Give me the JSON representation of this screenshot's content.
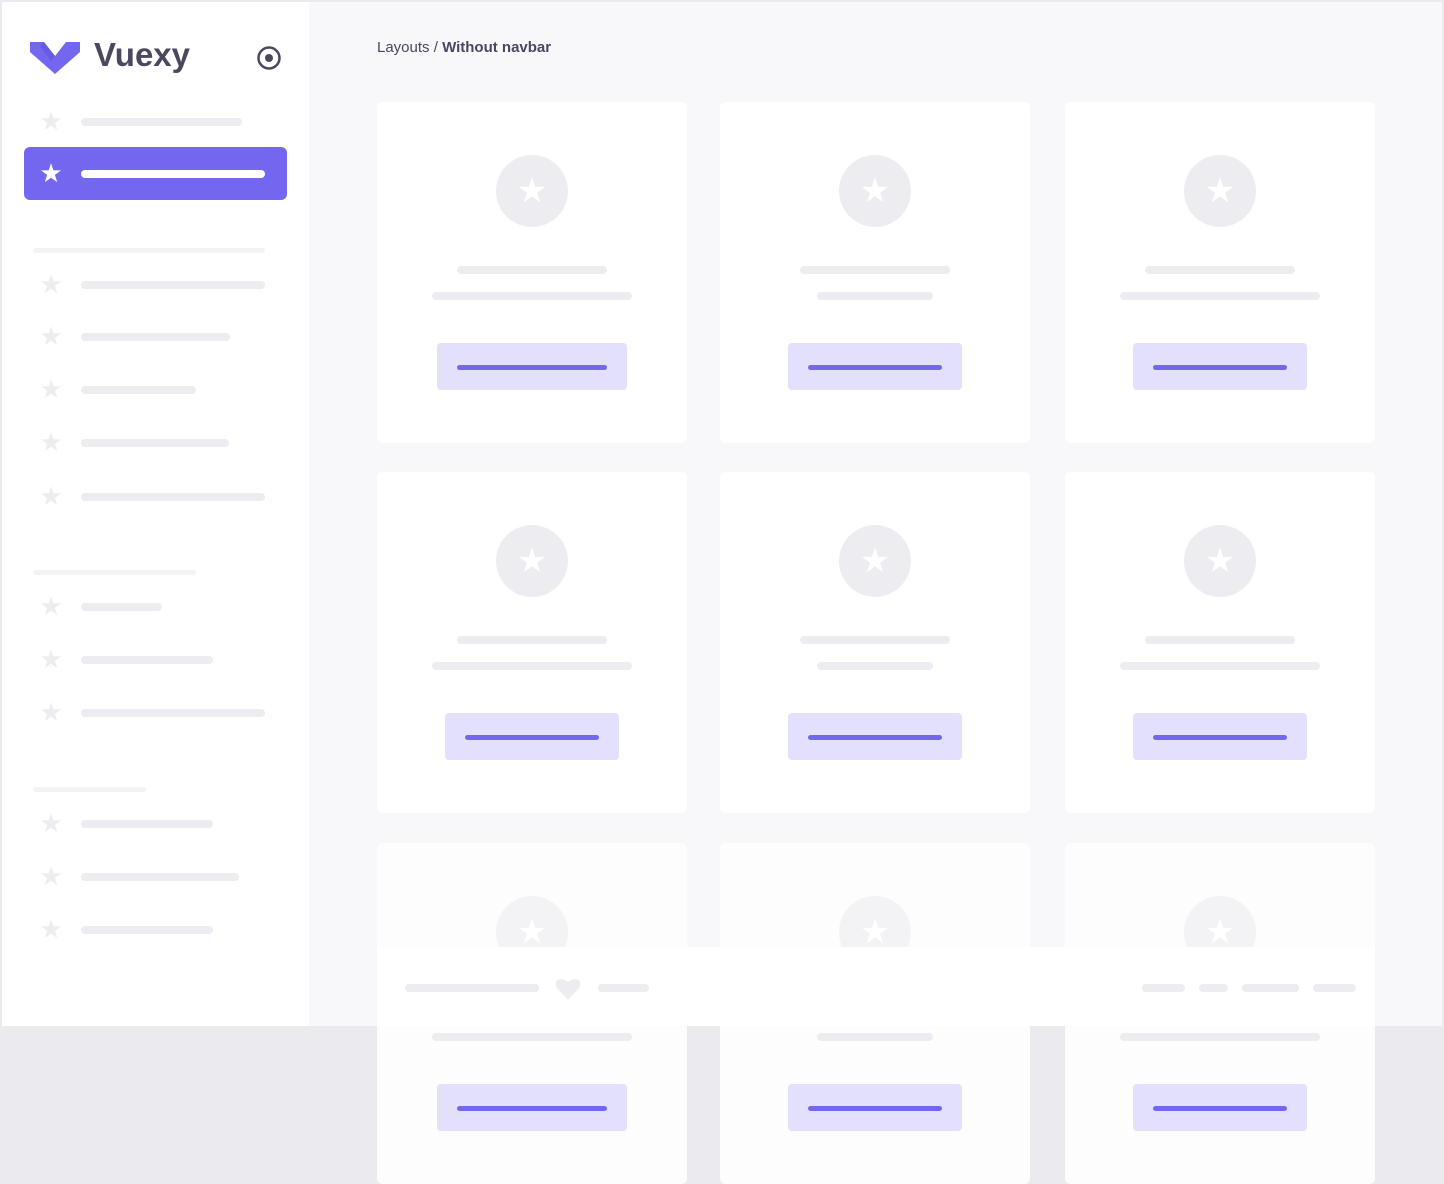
{
  "brand": {
    "name": "Vuexy",
    "logo_color": "#7367f0"
  },
  "sidebar": {
    "toggle_icon": "radio-circle-icon",
    "active_index": 1,
    "accent": "#7367f0"
  },
  "breadcrumb": {
    "parent": "Layouts",
    "separator": " / ",
    "current": "Without navbar"
  },
  "footer": {
    "icon": "heart-icon"
  }
}
